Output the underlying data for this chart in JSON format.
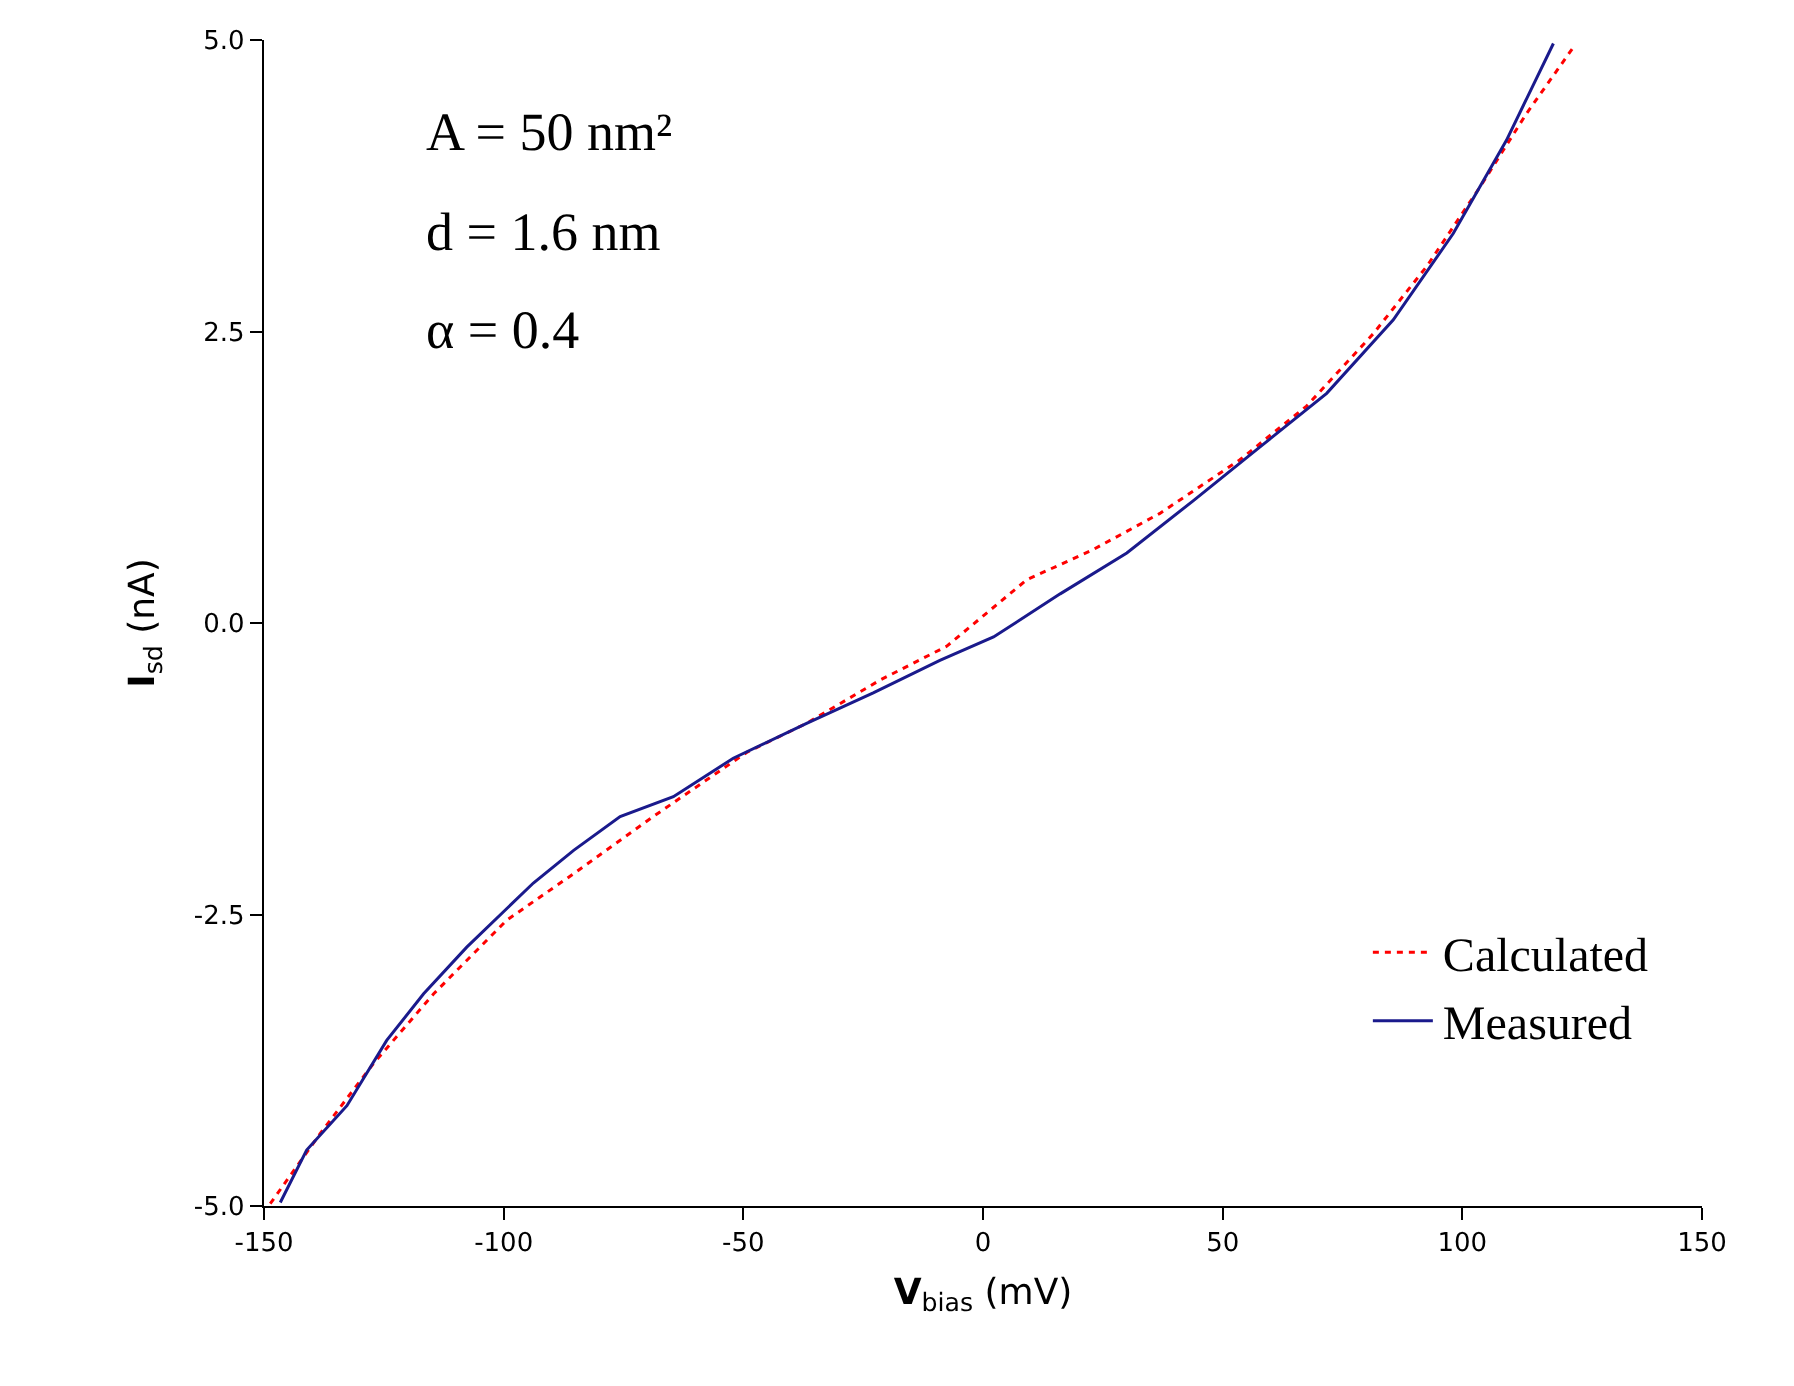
{
  "chart_data": {
    "type": "line",
    "xlabel": "V$_{bias}$ (mV)",
    "ylabel": "I$_{sd}$ (nA)",
    "xlim": [
      -150,
      150
    ],
    "xticks": [
      -150,
      -100,
      -50,
      0,
      50,
      100,
      150
    ],
    "ylim": [
      -5.0,
      5.0
    ],
    "yticks": [
      {
        "value": -5,
        "label": "-5.0"
      },
      {
        "value": -2.5,
        "label": "-2.5"
      },
      {
        "value": 0,
        "label": "0.0"
      },
      {
        "value": 2.5,
        "label": "2.5"
      },
      {
        "value": 5,
        "label": "5.0"
      }
    ],
    "legend": "bottom right",
    "annotations": [
      "A = 50 nm²",
      "d = 1.6 nm",
      "α = 0.4"
    ],
    "series": [
      {
        "name": "Calculated",
        "color": "#ff0000",
        "line_style": "dotted",
        "x": [
          -148.7,
          -138.3,
          -127.2,
          -114.6,
          -99.4,
          -85.4,
          -68.8,
          -49.3,
          -36.8,
          -21.5,
          -7.6,
          9.1,
          23.0,
          36.9,
          53.6,
          67.5,
          81.4,
          92.6,
          103.7,
          113.4,
          123.2
        ],
        "values": [
          -4.98,
          -4.38,
          -3.78,
          -3.18,
          -2.55,
          -2.15,
          -1.66,
          -1.11,
          -0.86,
          -0.49,
          -0.2,
          0.37,
          0.63,
          0.94,
          1.4,
          1.86,
          2.48,
          3.06,
          3.74,
          4.37,
          4.94
        ]
      },
      {
        "name": "Measured",
        "color": "#1a1a8c",
        "line_style": "solid",
        "x": [
          -146.6,
          -141.1,
          -132.7,
          -124.4,
          -116.7,
          -107.7,
          -93.8,
          -85.4,
          -75.7,
          -64.6,
          -52.1,
          -36.8,
          -22.9,
          -9.0,
          2.2,
          16.1,
          30.0,
          43.9,
          57.8,
          71.7,
          85.6,
          98.1,
          109.2,
          119.0
        ],
        "values": [
          -4.97,
          -4.52,
          -4.14,
          -3.58,
          -3.18,
          -2.78,
          -2.23,
          -1.95,
          -1.66,
          -1.49,
          -1.16,
          -0.86,
          -0.6,
          -0.32,
          -0.12,
          0.25,
          0.6,
          1.05,
          1.51,
          1.97,
          2.6,
          3.34,
          4.14,
          4.97
        ]
      }
    ]
  }
}
